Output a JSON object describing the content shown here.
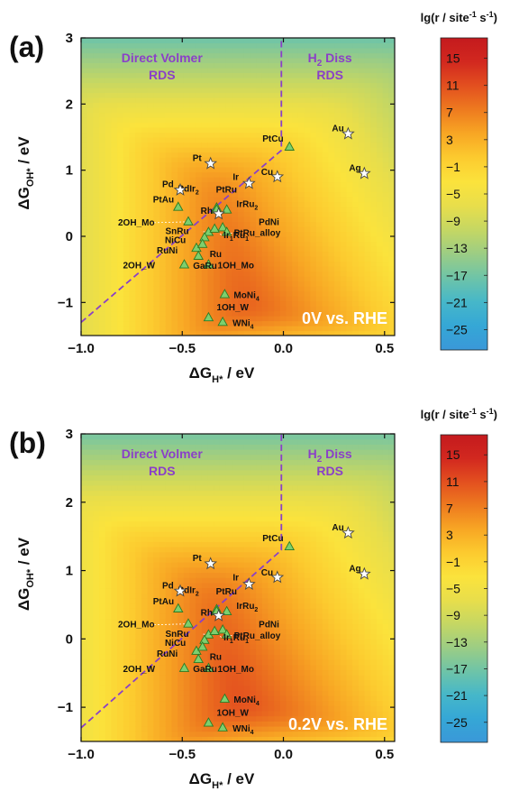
{
  "colors": {
    "scale": [
      "#3a98d8",
      "#35a7d6",
      "#46b7c9",
      "#6ec4a8",
      "#9ccd84",
      "#c5d763",
      "#e8de4b",
      "#fbe33c",
      "#fccb2f",
      "#f8a724",
      "#ee7b1f",
      "#e3501f",
      "#d2281f",
      "#c41a1e"
    ],
    "boundary": "#8a40c8",
    "region_label": "#8a40c8",
    "triangle_fill": "#7dcf6e",
    "triangle_stroke": "#2b7a24",
    "star_fill": "#ffffff",
    "star_stroke": "#444444",
    "annotation": "#ffffff"
  },
  "chart_data": [
    {
      "type": "heatmap",
      "panel_label": "(a)",
      "xlabel": "ΔG_H* / eV",
      "ylabel": "ΔG_OH* / eV",
      "xlim": [
        -1.0,
        0.55
      ],
      "ylim": [
        -1.5,
        3.0
      ],
      "xticks": [
        -1.0,
        -0.5,
        0.0,
        0.5
      ],
      "xtick_labels": [
        "−1.0",
        "−0.5",
        "0.0",
        "0.5"
      ],
      "yticks": [
        -1,
        0,
        1,
        2,
        3
      ],
      "ytick_labels": [
        "−1",
        "0",
        "1",
        "2",
        "3"
      ],
      "annotation": "0V vs. RHE",
      "region_labels": [
        {
          "lines": [
            "Direct Volmer",
            "RDS"
          ]
        },
        {
          "lines": [
            "H",
            "2",
            " Diss",
            "RDS"
          ]
        }
      ],
      "colorbar": {
        "title_parts": [
          "lg(r / site",
          "-1",
          " s",
          "-1",
          ")"
        ],
        "ticks": [
          15,
          11,
          7,
          3,
          -1,
          -5,
          -9,
          -13,
          -17,
          -21,
          -25
        ],
        "tick_labels": [
          "15",
          "11",
          "7",
          "3",
          "−1",
          "−5",
          "−9",
          "−13",
          "−17",
          "−21",
          "−25"
        ],
        "range": [
          -28,
          18
        ]
      },
      "shift": 0.0,
      "boundary": {
        "diagonal_from": [
          -1.0,
          -1.3
        ],
        "corner": [
          -0.01,
          1.3
        ],
        "vertical_to": [
          -0.01,
          3.0
        ]
      },
      "metals": [
        {
          "name": "Au",
          "x": 0.32,
          "y": 1.55
        },
        {
          "name": "Ag",
          "x": 0.4,
          "y": 0.95
        },
        {
          "name": "Pt",
          "x": -0.36,
          "y": 1.1
        },
        {
          "name": "Cu",
          "x": -0.03,
          "y": 0.9
        },
        {
          "name": "Ir",
          "x": -0.17,
          "y": 0.8
        },
        {
          "name": "Pd",
          "x": -0.51,
          "y": 0.7
        },
        {
          "name": "Rh",
          "x": -0.32,
          "y": 0.34
        }
      ],
      "alloys": [
        {
          "name": "PtCu",
          "x": 0.03,
          "y": 1.35
        },
        {
          "name": "PdIr2",
          "x": -0.33,
          "y": 0.43
        },
        {
          "name": "PtRu",
          "x": -0.28,
          "y": 0.4
        },
        {
          "name": "IrRu2",
          "x": -0.33,
          "y": 0.4
        },
        {
          "name": "PtAu",
          "x": -0.52,
          "y": 0.44
        },
        {
          "name": "2OH_Mo",
          "x": -0.47,
          "y": 0.22
        },
        {
          "name": "PdNi",
          "x": -0.3,
          "y": 0.13
        },
        {
          "name": "PtRu_alloy",
          "x": -0.28,
          "y": 0.06
        },
        {
          "name": "SnRu",
          "x": -0.37,
          "y": 0.06
        },
        {
          "name": "Ir1Ru1",
          "x": -0.34,
          "y": 0.11
        },
        {
          "name": "NiCu",
          "x": -0.39,
          "y": -0.02
        },
        {
          "name": "RuNi",
          "x": -0.43,
          "y": -0.18
        },
        {
          "name": "Ru",
          "x": -0.4,
          "y": -0.12
        },
        {
          "name": "2OH_W",
          "x": -0.49,
          "y": -0.43
        },
        {
          "name": "1OH_Mo",
          "x": -0.37,
          "y": -0.43
        },
        {
          "name": "GaRu",
          "x": -0.42,
          "y": -0.3
        },
        {
          "name": "MoNi4",
          "x": -0.29,
          "y": -0.88
        },
        {
          "name": "1OH_W",
          "x": -0.37,
          "y": -1.23
        },
        {
          "name": "WNi4",
          "x": -0.3,
          "y": -1.3
        }
      ]
    },
    {
      "type": "heatmap",
      "panel_label": "(b)",
      "xlabel": "ΔG_H* / eV",
      "ylabel": "ΔG_OH* / eV",
      "xlim": [
        -1.0,
        0.55
      ],
      "ylim": [
        -1.5,
        3.0
      ],
      "xticks": [
        -1.0,
        -0.5,
        0.0,
        0.5
      ],
      "xtick_labels": [
        "−1.0",
        "−0.5",
        "0.0",
        "0.5"
      ],
      "yticks": [
        -1,
        0,
        1,
        2,
        3
      ],
      "ytick_labels": [
        "−1",
        "0",
        "1",
        "2",
        "3"
      ],
      "annotation": "0.2V vs. RHE",
      "region_labels": [
        {
          "lines": [
            "Direct Volmer",
            "RDS"
          ]
        },
        {
          "lines": [
            "H",
            "2",
            " Diss",
            "RDS"
          ]
        }
      ],
      "colorbar": {
        "title_parts": [
          "lg(r / site",
          "-1",
          " s",
          "-1",
          ")"
        ],
        "ticks": [
          15,
          11,
          7,
          3,
          -1,
          -5,
          -9,
          -13,
          -17,
          -21,
          -25
        ],
        "tick_labels": [
          "15",
          "11",
          "7",
          "3",
          "−1",
          "−5",
          "−9",
          "−13",
          "−17",
          "−21",
          "−25"
        ],
        "range": [
          -28,
          18
        ]
      },
      "shift": 0.2,
      "boundary": {
        "diagonal_from": [
          -1.0,
          -1.3
        ],
        "corner": [
          -0.01,
          1.3
        ],
        "vertical_to": [
          -0.01,
          3.0
        ]
      },
      "metals": [
        {
          "name": "Au",
          "x": 0.32,
          "y": 1.55
        },
        {
          "name": "Ag",
          "x": 0.4,
          "y": 0.95
        },
        {
          "name": "Pt",
          "x": -0.36,
          "y": 1.1
        },
        {
          "name": "Cu",
          "x": -0.03,
          "y": 0.9
        },
        {
          "name": "Ir",
          "x": -0.17,
          "y": 0.8
        },
        {
          "name": "Pd",
          "x": -0.51,
          "y": 0.7
        },
        {
          "name": "Rh",
          "x": -0.32,
          "y": 0.34
        }
      ],
      "alloys": [
        {
          "name": "PtCu",
          "x": 0.03,
          "y": 1.35
        },
        {
          "name": "PdIr2",
          "x": -0.33,
          "y": 0.43
        },
        {
          "name": "PtRu",
          "x": -0.28,
          "y": 0.4
        },
        {
          "name": "IrRu2",
          "x": -0.33,
          "y": 0.4
        },
        {
          "name": "PtAu",
          "x": -0.52,
          "y": 0.44
        },
        {
          "name": "2OH_Mo",
          "x": -0.47,
          "y": 0.22
        },
        {
          "name": "PdNi",
          "x": -0.3,
          "y": 0.13
        },
        {
          "name": "PtRu_alloy",
          "x": -0.28,
          "y": 0.06
        },
        {
          "name": "SnRu",
          "x": -0.37,
          "y": 0.06
        },
        {
          "name": "Ir1Ru1",
          "x": -0.34,
          "y": 0.11
        },
        {
          "name": "NiCu",
          "x": -0.39,
          "y": -0.02
        },
        {
          "name": "RuNi",
          "x": -0.43,
          "y": -0.18
        },
        {
          "name": "Ru",
          "x": -0.4,
          "y": -0.12
        },
        {
          "name": "2OH_W",
          "x": -0.49,
          "y": -0.43
        },
        {
          "name": "1OH_Mo",
          "x": -0.37,
          "y": -0.43
        },
        {
          "name": "GaRu",
          "x": -0.42,
          "y": -0.3
        },
        {
          "name": "MoNi4",
          "x": -0.29,
          "y": -0.88
        },
        {
          "name": "1OH_W",
          "x": -0.37,
          "y": -1.23
        },
        {
          "name": "WNi4",
          "x": -0.3,
          "y": -1.3
        }
      ]
    }
  ]
}
